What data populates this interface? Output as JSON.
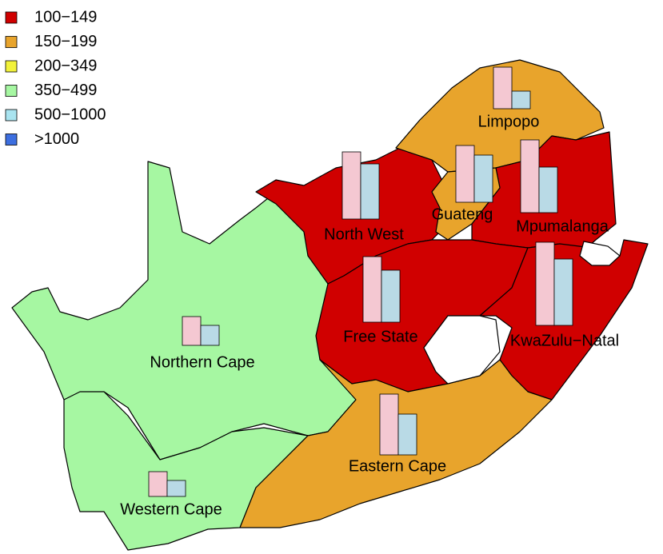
{
  "legend": [
    {
      "label": "100−149",
      "color": "#d00000"
    },
    {
      "label": "150−199",
      "color": "#e8a42c"
    },
    {
      "label": "200−349",
      "color": "#f2f23a"
    },
    {
      "label": "350−499",
      "color": "#a6f7a2"
    },
    {
      "label": "500−1000",
      "color": "#a9e4f0"
    },
    {
      "label": ">1000",
      "color": "#3d6fe0"
    }
  ],
  "bar_colors": [
    "#f4c8d2",
    "#b9dae6"
  ],
  "provinces": [
    {
      "label": "Northern Cape",
      "fill": "#a6f7a2",
      "bars": [
        36,
        25
      ]
    },
    {
      "label": "Western Cape",
      "fill": "#a6f7a2",
      "bars": [
        31,
        20
      ]
    },
    {
      "label": "North West",
      "fill": "#d00000",
      "bars": [
        84,
        69
      ]
    },
    {
      "label": "Limpopo",
      "fill": "#e8a42c",
      "bars": [
        52,
        22
      ]
    },
    {
      "label": "Mpumalanga",
      "fill": "#d00000",
      "bars": [
        91,
        57
      ]
    },
    {
      "label": "Guateng",
      "fill": "#e8a42c",
      "bars": [
        71,
        59
      ]
    },
    {
      "label": "Free State",
      "fill": "#d00000",
      "bars": [
        82,
        65
      ]
    },
    {
      "label": "KwaZulu−Natal",
      "fill": "#d00000",
      "bars": [
        104,
        83
      ]
    },
    {
      "label": "Eastern Cape",
      "fill": "#e8a42c",
      "bars": [
        76,
        51
      ]
    }
  ]
}
